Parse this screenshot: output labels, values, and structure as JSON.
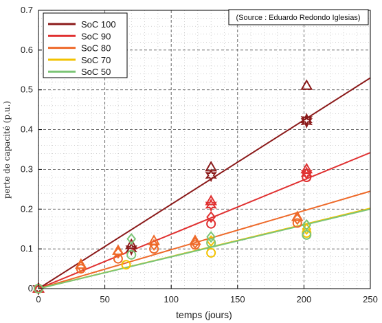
{
  "chart_data": {
    "type": "scatter",
    "xlabel": "temps (jours)",
    "ylabel": "perte de capacité (p.u.)",
    "xlim": [
      0,
      250
    ],
    "ylim": [
      0,
      0.7
    ],
    "x_ticks": [
      "0",
      "50",
      "100",
      "150",
      "200",
      "250"
    ],
    "y_ticks": [
      "0",
      "0.1",
      "0.2",
      "0.3",
      "0.4",
      "0.5",
      "0.6",
      "0.7"
    ],
    "grid": "major-dashed-minor-dotted",
    "legend_position": "top-left",
    "source_note": "(Source : Eduardo Redondo Iglesias)",
    "series": [
      {
        "name": "SoC 100",
        "color": "#8b1a1a",
        "fit_line": [
          [
            0,
            0
          ],
          [
            250,
            0.53
          ]
        ],
        "markers": [
          {
            "shape": "triangle",
            "points": [
              [
                0,
                0
              ],
              [
                70,
                0.11
              ],
              [
                130,
                0.305
              ],
              [
                202,
                0.51
              ]
            ]
          },
          {
            "shape": "star",
            "points": [
              [
                0,
                0
              ],
              [
                70,
                0.1
              ],
              [
                130,
                0.285
              ],
              [
                202,
                0.425
              ]
            ]
          },
          {
            "shape": "star",
            "points": [
              [
                202,
                0.42
              ]
            ]
          }
        ]
      },
      {
        "name": "SoC 90",
        "color": "#e03030",
        "fit_line": [
          [
            0,
            0
          ],
          [
            250,
            0.342
          ]
        ],
        "markers": [
          {
            "shape": "triangle",
            "points": [
              [
                0,
                0
              ],
              [
                130,
                0.22
              ],
              [
                202,
                0.3
              ]
            ]
          },
          {
            "shape": "star",
            "points": [
              [
                130,
                0.21
              ],
              [
                202,
                0.29
              ]
            ]
          },
          {
            "shape": "diamond",
            "points": [
              [
                130,
                0.18
              ],
              [
                202,
                0.29
              ]
            ]
          },
          {
            "shape": "circle",
            "points": [
              [
                0,
                0
              ],
              [
                130,
                0.163
              ],
              [
                202,
                0.28
              ]
            ]
          }
        ]
      },
      {
        "name": "SoC 80",
        "color": "#ee6a2a",
        "fit_line": [
          [
            0,
            0
          ],
          [
            250,
            0.245
          ]
        ],
        "markers": [
          {
            "shape": "triangle",
            "points": [
              [
                32,
                0.06
              ],
              [
                60,
                0.095
              ],
              [
                87,
                0.12
              ],
              [
                118,
                0.12
              ],
              [
                195,
                0.18
              ]
            ]
          },
          {
            "shape": "diamond",
            "points": [
              [
                32,
                0.055
              ],
              [
                60,
                0.09
              ],
              [
                87,
                0.11
              ],
              [
                118,
                0.115
              ],
              [
                195,
                0.175
              ]
            ]
          },
          {
            "shape": "circle",
            "points": [
              [
                0,
                0
              ],
              [
                32,
                0.05
              ],
              [
                60,
                0.075
              ],
              [
                87,
                0.1
              ],
              [
                118,
                0.11
              ],
              [
                195,
                0.165
              ]
            ]
          }
        ]
      },
      {
        "name": "SoC 70",
        "color": "#f2c200",
        "fit_line": [
          [
            0,
            0
          ],
          [
            250,
            0.202
          ]
        ],
        "markers": [
          {
            "shape": "diamond",
            "points": [
              [
                130,
                0.12
              ],
              [
                202,
                0.15
              ]
            ]
          },
          {
            "shape": "circle",
            "points": [
              [
                66,
                0.06
              ],
              [
                130,
                0.09
              ],
              [
                202,
                0.14
              ]
            ]
          }
        ]
      },
      {
        "name": "SoC 50",
        "color": "#7cc576",
        "fit_line": [
          [
            0,
            0
          ],
          [
            250,
            0.2
          ]
        ],
        "markers": [
          {
            "shape": "diamond",
            "points": [
              [
                70,
                0.125
              ],
              [
                130,
                0.13
              ],
              [
                202,
                0.16
              ]
            ]
          },
          {
            "shape": "circle",
            "points": [
              [
                0,
                0
              ],
              [
                70,
                0.085
              ],
              [
                130,
                0.115
              ],
              [
                202,
                0.135
              ]
            ]
          }
        ]
      }
    ]
  }
}
